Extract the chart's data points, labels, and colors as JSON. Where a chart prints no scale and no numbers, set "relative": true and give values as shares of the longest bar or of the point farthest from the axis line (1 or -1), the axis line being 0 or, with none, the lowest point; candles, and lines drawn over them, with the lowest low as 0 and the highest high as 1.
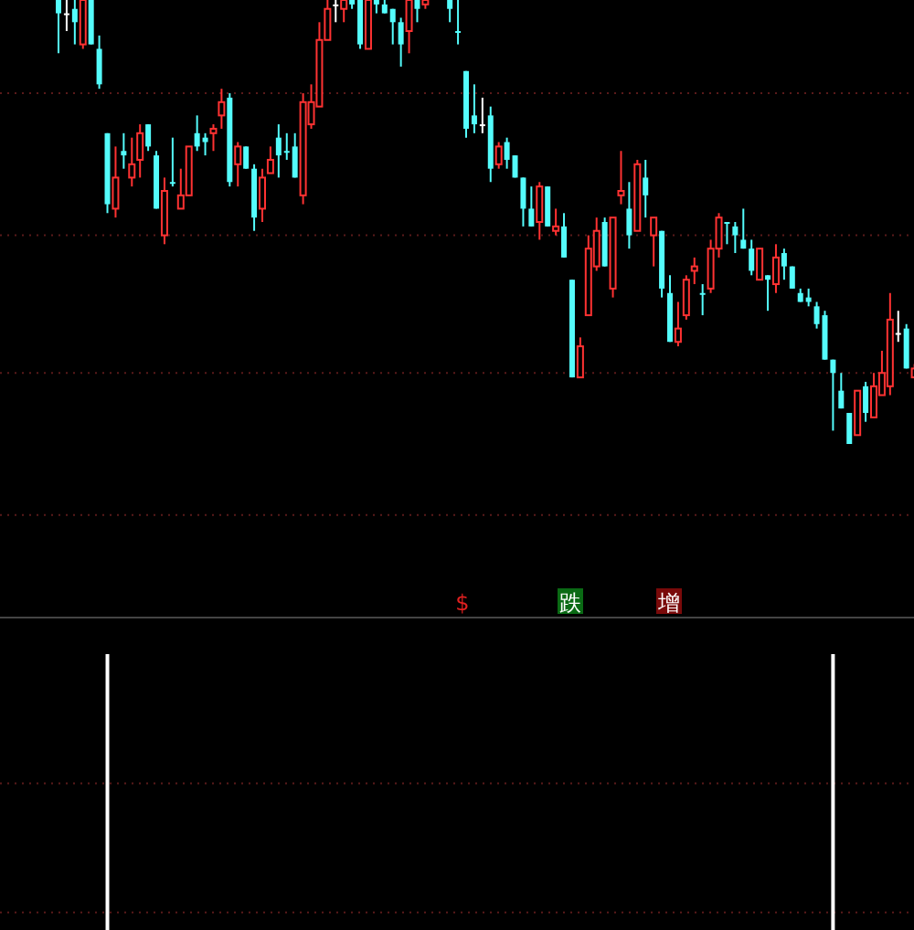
{
  "chart_data": [
    {
      "type": "candlestick",
      "relative": true,
      "ref_lines": [
        {
          "axis": "y",
          "value": 0.79,
          "color": "#5a1a1a",
          "line_style": "dotted"
        },
        {
          "axis": "y",
          "value": 0.47,
          "color": "#5a1a1a",
          "line_style": "dotted"
        },
        {
          "axis": "y",
          "value": 0.16,
          "color": "#5a1a1a",
          "line_style": "dotted"
        },
        {
          "axis": "y",
          "value": -0.16,
          "color": "#5a1a1a",
          "line_style": "dotted"
        }
      ],
      "categories": [
        null,
        null,
        null,
        null,
        null,
        null,
        null,
        null,
        null,
        null,
        null,
        null,
        null,
        null,
        null,
        null,
        null,
        null,
        null,
        null,
        null,
        null,
        null,
        null,
        null,
        null,
        null,
        null,
        null,
        null,
        null,
        null,
        null,
        null,
        null,
        null,
        null,
        null,
        null,
        null,
        null,
        null,
        null,
        null,
        null,
        null,
        null,
        null,
        null,
        null,
        null,
        null,
        null,
        null,
        null,
        null,
        null,
        null,
        null,
        null,
        null,
        null,
        null,
        null,
        null,
        null,
        null,
        null,
        null,
        null,
        null,
        null,
        null,
        null,
        null,
        null,
        null,
        null,
        null,
        null,
        null,
        null,
        null,
        null,
        null,
        null,
        null,
        null,
        null,
        null,
        null,
        null,
        null,
        null,
        null,
        null,
        null,
        null,
        null,
        null,
        null,
        null,
        null,
        null,
        null,
        null
      ],
      "ohlc": [
        [
          1.0,
          1.0,
          0.88,
          0.97
        ],
        [
          0.97,
          1.0,
          0.93,
          0.97
        ],
        [
          0.98,
          1.0,
          0.9,
          0.95
        ],
        [
          0.9,
          1.0,
          0.89,
          1.0
        ],
        [
          1.0,
          1.0,
          0.9,
          0.9
        ],
        [
          0.89,
          0.92,
          0.8,
          0.81
        ],
        [
          0.7,
          0.7,
          0.52,
          0.54
        ],
        [
          0.53,
          0.67,
          0.51,
          0.6
        ],
        [
          0.66,
          0.7,
          0.62,
          0.65
        ],
        [
          0.6,
          0.69,
          0.58,
          0.63
        ],
        [
          0.64,
          0.72,
          0.6,
          0.7
        ],
        [
          0.72,
          0.72,
          0.66,
          0.67
        ],
        [
          0.65,
          0.66,
          0.53,
          0.53
        ],
        [
          0.47,
          0.6,
          0.45,
          0.57
        ],
        [
          0.59,
          0.69,
          0.58,
          0.59
        ],
        [
          0.53,
          0.62,
          0.53,
          0.56
        ],
        [
          0.56,
          0.67,
          0.56,
          0.67
        ],
        [
          0.7,
          0.74,
          0.66,
          0.67
        ],
        [
          0.69,
          0.7,
          0.65,
          0.68
        ],
        [
          0.7,
          0.72,
          0.66,
          0.71
        ],
        [
          0.74,
          0.8,
          0.71,
          0.77
        ],
        [
          0.78,
          0.79,
          0.58,
          0.59
        ],
        [
          0.63,
          0.68,
          0.58,
          0.67
        ],
        [
          0.67,
          0.67,
          0.62,
          0.62
        ],
        [
          0.62,
          0.63,
          0.48,
          0.51
        ],
        [
          0.53,
          0.62,
          0.5,
          0.6
        ],
        [
          0.61,
          0.67,
          0.61,
          0.64
        ],
        [
          0.69,
          0.72,
          0.6,
          0.65
        ],
        [
          0.66,
          0.7,
          0.64,
          0.66
        ],
        [
          0.67,
          0.7,
          0.6,
          0.6
        ],
        [
          0.56,
          0.79,
          0.54,
          0.77
        ],
        [
          0.72,
          0.81,
          0.71,
          0.77
        ],
        [
          0.76,
          0.95,
          0.76,
          0.91
        ],
        [
          0.91,
          1.0,
          0.91,
          0.98
        ],
        [
          0.99,
          1.0,
          0.95,
          0.99
        ],
        [
          0.98,
          1.0,
          0.95,
          1.0
        ],
        [
          1.0,
          1.0,
          0.98,
          0.99
        ],
        [
          1.0,
          1.0,
          0.89,
          0.9
        ],
        [
          0.89,
          1.0,
          0.89,
          1.0
        ],
        [
          1.0,
          1.0,
          0.97,
          0.99
        ],
        [
          0.99,
          1.0,
          0.97,
          0.97
        ],
        [
          0.98,
          0.98,
          0.9,
          0.95
        ],
        [
          0.95,
          0.96,
          0.85,
          0.9
        ],
        [
          0.93,
          1.0,
          0.88,
          1.0
        ],
        [
          1.0,
          1.0,
          0.95,
          0.98
        ],
        [
          0.99,
          1.0,
          0.98,
          1.0
        ],
        null,
        null,
        [
          1.0,
          1.0,
          0.95,
          0.98
        ],
        [
          0.93,
          1.0,
          0.9,
          0.93
        ],
        [
          0.84,
          0.84,
          0.69,
          0.71
        ],
        [
          0.74,
          0.81,
          0.7,
          0.72
        ],
        [
          0.72,
          0.78,
          0.7,
          0.72
        ],
        [
          0.74,
          0.76,
          0.59,
          0.62
        ],
        [
          0.63,
          0.68,
          0.62,
          0.67
        ],
        [
          0.68,
          0.69,
          0.62,
          0.64
        ],
        [
          0.65,
          0.65,
          0.6,
          0.6
        ],
        [
          0.6,
          0.6,
          0.49,
          0.53
        ],
        [
          0.53,
          0.58,
          0.49,
          0.49
        ],
        [
          0.5,
          0.59,
          0.46,
          0.58
        ],
        [
          0.58,
          0.58,
          0.49,
          0.49
        ],
        [
          0.48,
          0.53,
          0.47,
          0.49
        ],
        [
          0.49,
          0.52,
          0.42,
          0.42
        ],
        [
          0.37,
          0.37,
          0.15,
          0.15
        ],
        [
          0.15,
          0.24,
          0.15,
          0.22
        ],
        [
          0.29,
          0.47,
          0.29,
          0.44
        ],
        [
          0.4,
          0.51,
          0.39,
          0.48
        ],
        [
          0.5,
          0.51,
          0.4,
          0.4
        ],
        [
          0.35,
          0.51,
          0.33,
          0.51
        ],
        [
          0.56,
          0.66,
          0.54,
          0.57
        ],
        [
          0.53,
          0.59,
          0.44,
          0.47
        ],
        [
          0.48,
          0.64,
          0.48,
          0.63
        ],
        [
          0.6,
          0.64,
          0.51,
          0.56
        ],
        [
          0.47,
          0.51,
          0.4,
          0.51
        ],
        [
          0.48,
          0.48,
          0.33,
          0.35
        ],
        [
          0.34,
          0.38,
          0.23,
          0.23
        ],
        [
          0.23,
          0.32,
          0.22,
          0.26
        ],
        [
          0.29,
          0.38,
          0.28,
          0.37
        ],
        [
          0.39,
          0.42,
          0.36,
          0.4
        ],
        [
          0.34,
          0.36,
          0.29,
          0.34
        ],
        [
          0.35,
          0.46,
          0.34,
          0.44
        ],
        [
          0.44,
          0.52,
          0.42,
          0.51
        ],
        [
          0.5,
          0.5,
          0.45,
          0.5
        ],
        [
          0.49,
          0.5,
          0.43,
          0.47
        ],
        [
          0.46,
          0.53,
          0.44,
          0.44
        ],
        [
          0.44,
          0.46,
          0.38,
          0.39
        ],
        [
          0.37,
          0.44,
          0.37,
          0.44
        ],
        [
          0.38,
          0.38,
          0.3,
          0.37
        ],
        [
          0.36,
          0.45,
          0.34,
          0.42
        ],
        [
          0.43,
          0.44,
          0.37,
          0.4
        ],
        [
          0.4,
          0.4,
          0.35,
          0.35
        ],
        [
          0.34,
          0.35,
          0.32,
          0.32
        ],
        [
          0.33,
          0.35,
          0.31,
          0.32
        ],
        [
          0.31,
          0.32,
          0.26,
          0.27
        ],
        [
          0.29,
          0.3,
          0.19,
          0.19
        ],
        [
          0.19,
          0.19,
          0.03,
          0.16
        ],
        [
          0.12,
          0.16,
          0.08,
          0.08
        ],
        [
          0.07,
          0.07,
          0.0,
          0.0
        ],
        [
          0.02,
          0.12,
          0.02,
          0.12
        ],
        [
          0.13,
          0.14,
          0.05,
          0.07
        ],
        [
          0.06,
          0.16,
          0.06,
          0.13
        ],
        [
          0.11,
          0.21,
          0.11,
          0.16
        ],
        [
          0.13,
          0.34,
          0.11,
          0.28
        ],
        [
          0.25,
          0.3,
          0.23,
          0.25
        ],
        [
          0.26,
          0.27,
          0.17,
          0.17
        ],
        [
          0.15,
          0.18,
          0.15,
          0.17
        ]
      ],
      "colors": [
        "#54fcfc",
        "#ffffff",
        "#54fcfc",
        "#ff3232",
        "#54fcfc",
        "#54fcfc",
        "#54fcfc",
        "#ff3232",
        "#54fcfc",
        "#ff3232",
        "#ff3232",
        "#54fcfc",
        "#54fcfc",
        "#ff3232",
        "#54fcfc",
        "#ff3232",
        "#ff3232",
        "#54fcfc",
        "#54fcfc",
        "#ff3232",
        "#ff3232",
        "#54fcfc",
        "#ff3232",
        "#54fcfc",
        "#54fcfc",
        "#ff3232",
        "#ff3232",
        "#54fcfc",
        "#54fcfc",
        "#54fcfc",
        "#ff3232",
        "#ff3232",
        "#ff3232",
        "#ff3232",
        "#ffffff",
        "#ff3232",
        "#54fcfc",
        "#54fcfc",
        "#ff3232",
        "#54fcfc",
        "#54fcfc",
        "#54fcfc",
        "#54fcfc",
        "#ff3232",
        "#54fcfc",
        "#ff3232",
        null,
        null,
        "#54fcfc",
        "#54fcfc",
        "#54fcfc",
        "#54fcfc",
        "#ffffff",
        "#54fcfc",
        "#ff3232",
        "#54fcfc",
        "#54fcfc",
        "#54fcfc",
        "#54fcfc",
        "#ff3232",
        "#54fcfc",
        "#ff3232",
        "#54fcfc",
        "#54fcfc",
        "#ff3232",
        "#ff3232",
        "#ff3232",
        "#54fcfc",
        "#ff3232",
        "#ff3232",
        "#54fcfc",
        "#ff3232",
        "#54fcfc",
        "#ff3232",
        "#54fcfc",
        "#54fcfc",
        "#ff3232",
        "#ff3232",
        "#ff3232",
        "#54fcfc",
        "#ff3232",
        "#ff3232",
        "#54fcfc",
        "#54fcfc",
        "#54fcfc",
        "#54fcfc",
        "#ff3232",
        "#54fcfc",
        "#ff3232",
        "#54fcfc",
        "#54fcfc",
        "#54fcfc",
        "#54fcfc",
        "#54fcfc",
        "#54fcfc",
        "#54fcfc",
        "#54fcfc",
        "#54fcfc",
        "#ff3232",
        "#54fcfc",
        "#ff3232",
        "#ff3232",
        "#ff3232",
        "#ffffff",
        "#54fcfc",
        "#ff3232"
      ],
      "annotations": [
        "$",
        "跌",
        "增"
      ]
    },
    {
      "type": "bar",
      "relative": true,
      "color": "#ffffff",
      "ref_lines": [
        {
          "axis": "y",
          "value": 0.65,
          "color": "#5a1a1a",
          "line_style": "dotted"
        },
        {
          "axis": "y",
          "value": 0.3,
          "color": "#5a1a1a",
          "line_style": "dotted"
        }
      ],
      "categories": [
        null,
        null,
        null,
        null,
        null,
        null,
        null,
        null,
        null,
        null,
        null,
        null,
        null,
        null,
        null,
        null,
        null,
        null,
        null,
        null,
        null,
        null,
        null,
        null,
        null,
        null,
        null,
        null,
        null,
        null,
        null,
        null,
        null,
        null,
        null,
        null,
        null,
        null,
        null,
        null,
        null,
        null,
        null,
        null,
        null,
        null,
        null,
        null,
        null,
        null,
        null,
        null,
        null,
        null,
        null,
        null,
        null,
        null,
        null,
        null,
        null,
        null,
        null,
        null,
        null,
        null,
        null,
        null,
        null,
        null,
        null,
        null,
        null,
        null,
        null,
        null,
        null,
        null,
        null,
        null,
        null,
        null,
        null,
        null,
        null,
        null,
        null,
        null,
        null,
        null,
        null,
        null,
        null,
        null,
        null,
        null,
        null,
        null,
        null,
        null,
        null,
        null,
        null,
        null,
        null,
        null
      ],
      "values": [
        0,
        0,
        0,
        0,
        0,
        0,
        1,
        0,
        0,
        0,
        0,
        0,
        0,
        0,
        0,
        0,
        0,
        0,
        0,
        0,
        0,
        0,
        0,
        0,
        0,
        0,
        0,
        0,
        0,
        0,
        0,
        0,
        0,
        0,
        0,
        0,
        0,
        0,
        0,
        0,
        0,
        0,
        0,
        0,
        0,
        0,
        0,
        0,
        0,
        0,
        0,
        0,
        0,
        0,
        0,
        0,
        0,
        0,
        0,
        0,
        0,
        0,
        0,
        0,
        0,
        0,
        0,
        0,
        0,
        0,
        0,
        0,
        0,
        0,
        0,
        0,
        0,
        0,
        0,
        0,
        0,
        0,
        0,
        0,
        0,
        0,
        0,
        0,
        0,
        0,
        0,
        0,
        0,
        0,
        0,
        1,
        0,
        0,
        0,
        0,
        0,
        0,
        0,
        0,
        0,
        0
      ]
    }
  ]
}
